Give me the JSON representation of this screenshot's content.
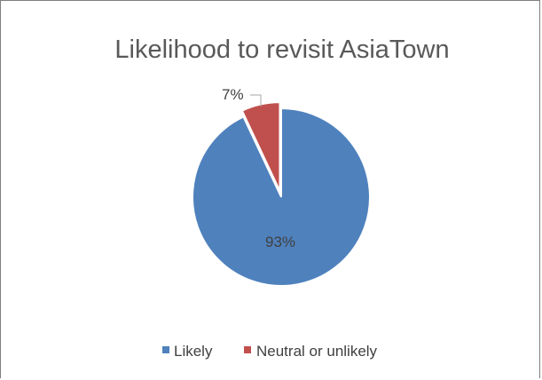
{
  "chart_data": {
    "type": "pie",
    "title": "Likelihood to revisit AsiaTown",
    "categories": [
      "Likely",
      "Neutral or unlikely"
    ],
    "values": [
      93,
      7
    ],
    "data_labels": [
      "93%",
      "7%"
    ],
    "colors": [
      "#4f81bd",
      "#c0504d"
    ],
    "legend": {
      "position": "bottom",
      "entries": [
        "Likely",
        "Neutral or unlikely"
      ]
    }
  }
}
